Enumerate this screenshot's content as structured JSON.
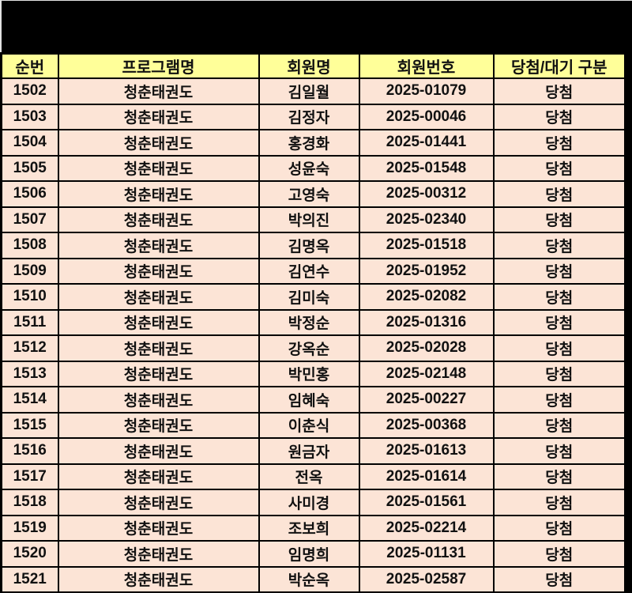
{
  "colors": {
    "banner_bg": "#000000",
    "header_bg": "#FFFF99",
    "row_bg": "#FCE4D6",
    "border": "#000000",
    "text": "#111111"
  },
  "table": {
    "columns": [
      {
        "key": "seq",
        "label": "순번"
      },
      {
        "key": "program",
        "label": "프로그램명"
      },
      {
        "key": "member",
        "label": "회원명"
      },
      {
        "key": "number",
        "label": "회원번호"
      },
      {
        "key": "status",
        "label": "당첨/대기 구분"
      }
    ],
    "rows": [
      {
        "seq": "1502",
        "program": "청춘태권도",
        "member": "김일월",
        "number": "2025-01079",
        "status": "당첨"
      },
      {
        "seq": "1503",
        "program": "청춘태권도",
        "member": "김정자",
        "number": "2025-00046",
        "status": "당첨"
      },
      {
        "seq": "1504",
        "program": "청춘태권도",
        "member": "홍경화",
        "number": "2025-01441",
        "status": "당첨"
      },
      {
        "seq": "1505",
        "program": "청춘태권도",
        "member": "성윤숙",
        "number": "2025-01548",
        "status": "당첨"
      },
      {
        "seq": "1506",
        "program": "청춘태권도",
        "member": "고영숙",
        "number": "2025-00312",
        "status": "당첨"
      },
      {
        "seq": "1507",
        "program": "청춘태권도",
        "member": "박의진",
        "number": "2025-02340",
        "status": "당첨"
      },
      {
        "seq": "1508",
        "program": "청춘태권도",
        "member": "김명옥",
        "number": "2025-01518",
        "status": "당첨"
      },
      {
        "seq": "1509",
        "program": "청춘태권도",
        "member": "김연수",
        "number": "2025-01952",
        "status": "당첨"
      },
      {
        "seq": "1510",
        "program": "청춘태권도",
        "member": "김미숙",
        "number": "2025-02082",
        "status": "당첨"
      },
      {
        "seq": "1511",
        "program": "청춘태권도",
        "member": "박정순",
        "number": "2025-01316",
        "status": "당첨"
      },
      {
        "seq": "1512",
        "program": "청춘태권도",
        "member": "강옥순",
        "number": "2025-02028",
        "status": "당첨"
      },
      {
        "seq": "1513",
        "program": "청춘태권도",
        "member": "박민홍",
        "number": "2025-02148",
        "status": "당첨"
      },
      {
        "seq": "1514",
        "program": "청춘태권도",
        "member": "임혜숙",
        "number": "2025-00227",
        "status": "당첨"
      },
      {
        "seq": "1515",
        "program": "청춘태권도",
        "member": "이춘식",
        "number": "2025-00368",
        "status": "당첨"
      },
      {
        "seq": "1516",
        "program": "청춘태권도",
        "member": "원금자",
        "number": "2025-01613",
        "status": "당첨"
      },
      {
        "seq": "1517",
        "program": "청춘태권도",
        "member": "전옥",
        "number": "2025-01614",
        "status": "당첨"
      },
      {
        "seq": "1518",
        "program": "청춘태권도",
        "member": "사미경",
        "number": "2025-01561",
        "status": "당첨"
      },
      {
        "seq": "1519",
        "program": "청춘태권도",
        "member": "조보희",
        "number": "2025-02214",
        "status": "당첨"
      },
      {
        "seq": "1520",
        "program": "청춘태권도",
        "member": "임명희",
        "number": "2025-01131",
        "status": "당첨"
      },
      {
        "seq": "1521",
        "program": "청춘태권도",
        "member": "박순옥",
        "number": "2025-02587",
        "status": "당첨"
      }
    ]
  }
}
